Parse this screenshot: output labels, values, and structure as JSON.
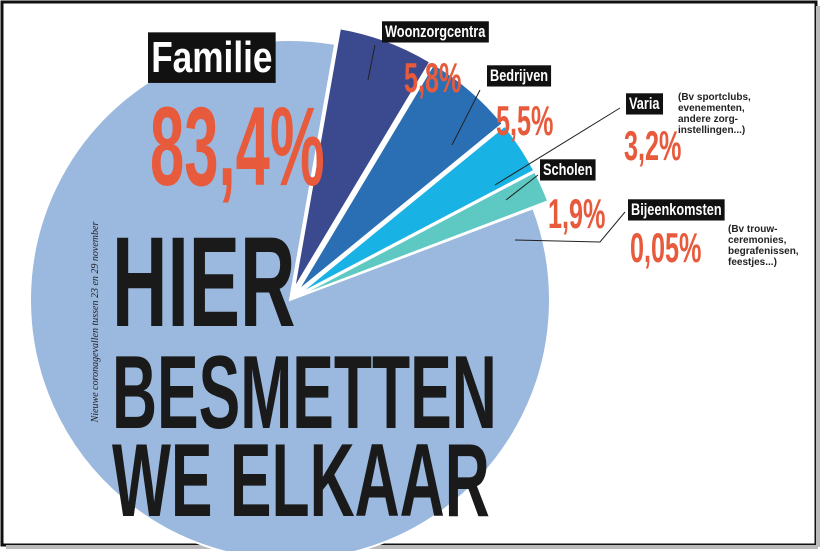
{
  "chart_data": {
    "type": "pie",
    "title": [
      "HIER",
      "BESMETTEN",
      "WE ELKAAR"
    ],
    "subtitle": "Nieuwe coronagevallen tussen 23 en 29 november",
    "categories": [
      "Familie",
      "Woonzorgcentra",
      "Bedrijven",
      "Varia",
      "Scholen",
      "Bijeenkomsten"
    ],
    "values": [
      83.4,
      5.8,
      5.5,
      3.2,
      1.9,
      0.05
    ],
    "value_labels": [
      "83,4%",
      "5,8%",
      "5,5%",
      "3,2%",
      "1,9%",
      "0,05%"
    ],
    "colors": [
      "#9bb8de",
      "#3b4a8e",
      "#2a6fb4",
      "#19b2e4",
      "#5ec8c2",
      "#2b4a8c"
    ],
    "annotations": [
      [
        "(Bv sportclubs,",
        "evenementen,",
        "andere zorg-",
        "instellingen...)"
      ],
      [
        "(Bv trouw-",
        "ceremonies,",
        "begrafenissen,",
        "feestjes...)"
      ]
    ]
  }
}
